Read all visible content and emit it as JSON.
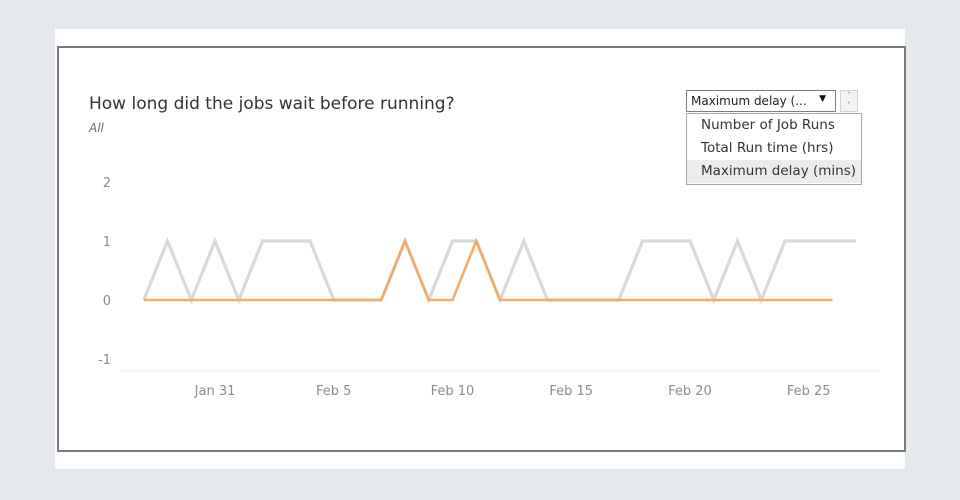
{
  "title": "How long did the jobs wait before running?",
  "subtitle": "All",
  "measure_selector": {
    "selected_label": "Maximum delay (...",
    "options": [
      "Number of Job Runs",
      "Total Run time (hrs)",
      "Maximum delay (mins)"
    ],
    "selected_index": 2
  },
  "colors": {
    "series_gray": "#d9d9d9",
    "series_orange": "#f5a85f",
    "axis_text": "#8c8c8c"
  },
  "chart_data": {
    "type": "line",
    "title": "How long did the jobs wait before running?",
    "xlabel": "",
    "ylabel": "",
    "ylim": [
      -1,
      2
    ],
    "yticks": [
      -1,
      0,
      1,
      2
    ],
    "xlim": [
      "2025-01-27",
      "2025-02-28"
    ],
    "xticks": [
      {
        "date": "2025-01-31",
        "label": "Jan 31"
      },
      {
        "date": "2025-02-05",
        "label": "Feb 5"
      },
      {
        "date": "2025-02-10",
        "label": "Feb 10"
      },
      {
        "date": "2025-02-15",
        "label": "Feb 15"
      },
      {
        "date": "2025-02-20",
        "label": "Feb 20"
      },
      {
        "date": "2025-02-25",
        "label": "Feb 25"
      }
    ],
    "grid": false,
    "series": [
      {
        "key": "gray",
        "x": [
          "2025-01-28",
          "2025-01-29",
          "2025-01-30",
          "2025-01-31",
          "2025-02-01",
          "2025-02-02",
          "2025-02-03",
          "2025-02-04",
          "2025-02-05",
          "2025-02-06",
          "2025-02-07",
          "2025-02-08",
          "2025-02-09",
          "2025-02-10",
          "2025-02-11",
          "2025-02-12",
          "2025-02-13",
          "2025-02-14",
          "2025-02-15",
          "2025-02-16",
          "2025-02-17",
          "2025-02-18",
          "2025-02-19",
          "2025-02-20",
          "2025-02-21",
          "2025-02-22",
          "2025-02-23",
          "2025-02-24",
          "2025-02-25",
          "2025-02-26",
          "2025-02-27"
        ],
        "values": [
          0,
          1,
          0,
          1,
          0,
          1,
          1,
          1,
          0,
          0,
          0,
          1,
          0,
          1,
          1,
          0,
          1,
          0,
          0,
          0,
          0,
          1,
          1,
          1,
          0,
          1,
          0,
          1,
          1,
          1,
          1
        ]
      },
      {
        "key": "orange",
        "x": [
          "2025-01-28",
          "2025-01-29",
          "2025-01-30",
          "2025-01-31",
          "2025-02-01",
          "2025-02-02",
          "2025-02-03",
          "2025-02-04",
          "2025-02-05",
          "2025-02-06",
          "2025-02-07",
          "2025-02-08",
          "2025-02-09",
          "2025-02-10",
          "2025-02-11",
          "2025-02-12",
          "2025-02-13",
          "2025-02-14",
          "2025-02-15",
          "2025-02-16",
          "2025-02-17",
          "2025-02-18",
          "2025-02-19",
          "2025-02-20",
          "2025-02-21",
          "2025-02-22",
          "2025-02-23",
          "2025-02-24",
          "2025-02-25",
          "2025-02-26"
        ],
        "values": [
          0,
          0,
          0,
          0,
          0,
          0,
          0,
          0,
          0,
          0,
          0,
          1,
          0,
          0,
          1,
          0,
          0,
          0,
          0,
          0,
          0,
          0,
          0,
          0,
          0,
          0,
          0,
          0,
          0,
          0
        ]
      }
    ]
  }
}
